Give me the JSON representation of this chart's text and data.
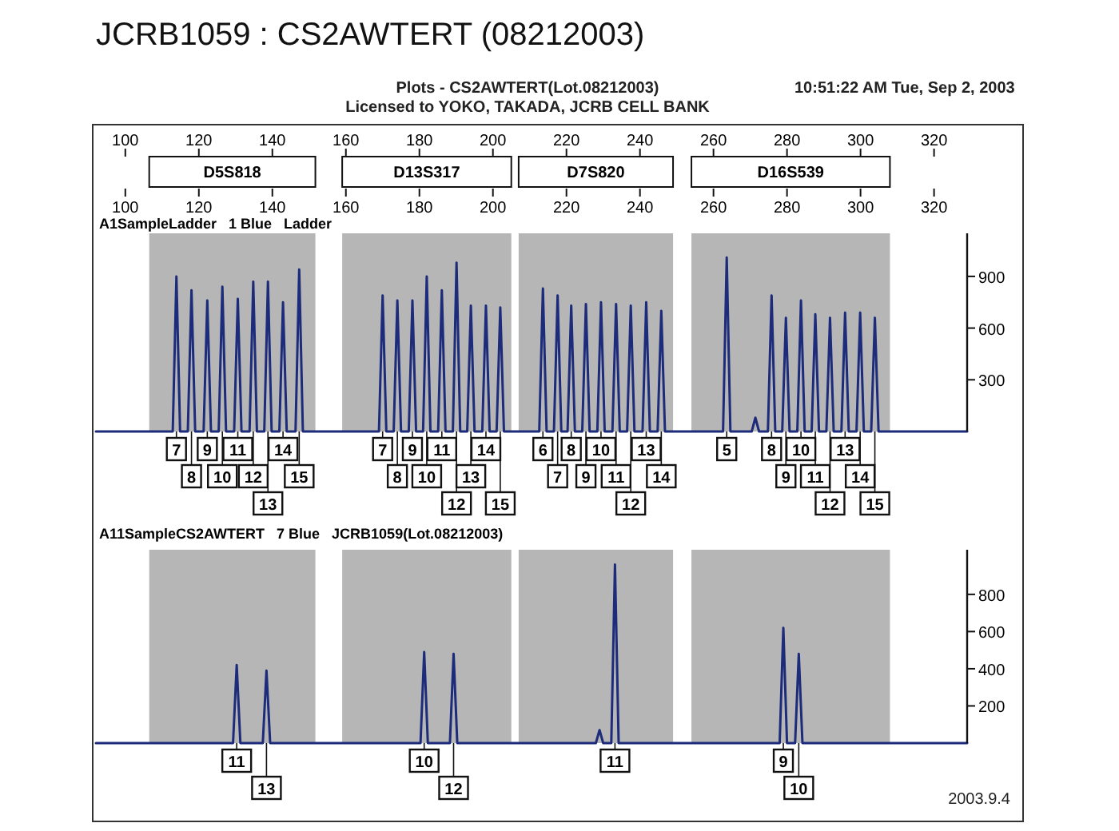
{
  "chart_data": [
    {
      "type": "line",
      "title": "JCRB1059 : CS2AWTERT (08212003)",
      "subtitle": "A1SampleLadder   1 Blue   Ladder",
      "annotations": [
        "Plots - CS2AWTERT(Lot.08212003)",
        "Licensed to YOKO, TAKADA, JCRB CELL BANK",
        "10:51:22 AM Tue, Sep 2, 2003",
        {
          "text": "7",
          "x": 113.9,
          "y": 0
        },
        {
          "text": "8",
          "x": 118,
          "y": 0
        },
        {
          "text": "9",
          "x": 122.3,
          "y": 0
        },
        {
          "text": "10",
          "x": 126.4,
          "y": 0
        },
        {
          "text": "11",
          "x": 130.6,
          "y": 0
        },
        {
          "text": "12",
          "x": 134.8,
          "y": 0
        },
        {
          "text": "13",
          "x": 138.8,
          "y": 0
        },
        {
          "text": "14",
          "x": 142.9,
          "y": 0
        },
        {
          "text": "15",
          "x": 147.3,
          "y": 0
        },
        {
          "text": "7",
          "x": 170,
          "y": 0
        },
        {
          "text": "8",
          "x": 174,
          "y": 0
        },
        {
          "text": "9",
          "x": 178.1,
          "y": 0
        },
        {
          "text": "10",
          "x": 182,
          "y": 0
        },
        {
          "text": "11",
          "x": 186.1,
          "y": 0
        },
        {
          "text": "12",
          "x": 190.1,
          "y": 0
        },
        {
          "text": "13",
          "x": 194,
          "y": 0
        },
        {
          "text": "14",
          "x": 198.1,
          "y": 0
        },
        {
          "text": "15",
          "x": 202,
          "y": 0
        },
        {
          "text": "6",
          "x": 213.6,
          "y": 0
        },
        {
          "text": "7",
          "x": 217.6,
          "y": 0
        },
        {
          "text": "8",
          "x": 221.3,
          "y": 0
        },
        {
          "text": "9",
          "x": 225.3,
          "y": 0
        },
        {
          "text": "10",
          "x": 229.4,
          "y": 0
        },
        {
          "text": "11",
          "x": 233.5,
          "y": 0
        },
        {
          "text": "12",
          "x": 237.5,
          "y": 0
        },
        {
          "text": "13",
          "x": 241.7,
          "y": 0
        },
        {
          "text": "14",
          "x": 245.8,
          "y": 0
        },
        {
          "text": "5",
          "x": 263.6,
          "y": 0
        },
        {
          "text": "8",
          "x": 275.8,
          "y": 0
        },
        {
          "text": "9",
          "x": 279.7,
          "y": 0
        },
        {
          "text": "10",
          "x": 283.8,
          "y": 0
        },
        {
          "text": "11",
          "x": 287.7,
          "y": 0
        },
        {
          "text": "12",
          "x": 291.7,
          "y": 0
        },
        {
          "text": "13",
          "x": 295.8,
          "y": 0
        },
        {
          "text": "14",
          "x": 299.9,
          "y": 0
        },
        {
          "text": "15",
          "x": 303.9,
          "y": 0
        }
      ],
      "xlim": [
        92,
        329
      ],
      "xticks": [
        100,
        120,
        140,
        160,
        180,
        200,
        220,
        240,
        260,
        280,
        300,
        320
      ],
      "x2lim": [
        92,
        329
      ],
      "x2ticks": [
        100,
        120,
        140,
        160,
        180,
        200,
        220,
        240,
        260,
        280,
        300,
        320
      ],
      "ylim": [
        0,
        1150
      ],
      "yticks": [
        300,
        600,
        900
      ],
      "bands": [
        {
          "axis": "x",
          "from": 106.5,
          "to": 151.7,
          "label": "D5S818",
          "color": "#a9a9a9"
        },
        {
          "axis": "x",
          "from": 159,
          "to": 205,
          "label": "D13S317",
          "color": "#a9a9a9"
        },
        {
          "axis": "x",
          "from": 207,
          "to": 249,
          "label": "D7S820",
          "color": "#a9a9a9"
        },
        {
          "axis": "x",
          "from": 254,
          "to": 308,
          "label": "D16S539",
          "color": "#a9a9a9"
        }
      ],
      "series": [
        {
          "color": "#1c2b7a",
          "x": [
            92,
            112.9,
            113.9,
            114.9,
            117,
            118,
            119,
            121.3,
            122.3,
            123.3,
            125.4,
            126.4,
            127.4,
            129.6,
            130.6,
            131.6,
            133.8,
            134.8,
            135.8,
            137.8,
            138.8,
            139.8,
            141.9,
            142.9,
            143.9,
            146.3,
            147.3,
            148.3,
            169,
            170,
            171,
            173,
            174,
            175,
            177.1,
            178.1,
            179.1,
            181,
            182,
            183,
            185.1,
            186.1,
            187.1,
            189.1,
            190.1,
            191.1,
            193,
            194,
            195,
            197.1,
            198.1,
            199.1,
            201,
            202,
            203,
            212.6,
            213.6,
            214.6,
            216.6,
            217.6,
            218.6,
            220.3,
            221.3,
            222.3,
            224.3,
            225.3,
            226.3,
            228.4,
            229.4,
            230.4,
            232.5,
            233.5,
            234.5,
            236.5,
            237.5,
            238.5,
            240.7,
            241.7,
            242.7,
            244.8,
            245.8,
            246.8,
            262.6,
            263.6,
            264.6,
            270.4,
            271.4,
            272.4,
            274.8,
            275.8,
            276.8,
            278.7,
            279.7,
            280.7,
            282.8,
            283.8,
            284.8,
            286.7,
            287.7,
            288.7,
            290.7,
            291.7,
            292.7,
            294.8,
            295.8,
            296.8,
            298.9,
            299.9,
            300.9,
            302.9,
            303.9,
            304.9,
            329
          ],
          "values": [
            0,
            0,
            900,
            0,
            0,
            820,
            0,
            0,
            760,
            0,
            0,
            840,
            0,
            0,
            770,
            0,
            0,
            870,
            0,
            0,
            870,
            0,
            0,
            750,
            0,
            0,
            940,
            0,
            0,
            790,
            0,
            0,
            760,
            0,
            0,
            760,
            0,
            0,
            900,
            0,
            0,
            820,
            0,
            0,
            980,
            0,
            0,
            730,
            0,
            0,
            730,
            0,
            0,
            720,
            0,
            0,
            830,
            0,
            0,
            790,
            0,
            0,
            730,
            0,
            0,
            740,
            0,
            0,
            750,
            0,
            0,
            740,
            0,
            0,
            730,
            0,
            0,
            750,
            0,
            0,
            700,
            0,
            0,
            1010,
            0,
            0,
            80,
            0,
            0,
            790,
            0,
            0,
            660,
            0,
            0,
            760,
            0,
            0,
            680,
            0,
            0,
            660,
            0,
            0,
            690,
            0,
            0,
            690,
            0,
            0,
            660,
            0,
            0
          ]
        }
      ]
    },
    {
      "type": "line",
      "subtitle": "A11SampleCS2AWTERT   7 Blue   JCRB1059(Lot.08212003)",
      "annotations": [
        "2003.9.4",
        {
          "text": "11",
          "x": 130.3,
          "y": 0
        },
        {
          "text": "13",
          "x": 138.4,
          "y": 0
        },
        {
          "text": "10",
          "x": 181.3,
          "y": 0
        },
        {
          "text": "12",
          "x": 189.3,
          "y": 0
        },
        {
          "text": "11",
          "x": 233.2,
          "y": 0
        },
        {
          "text": "9",
          "x": 279,
          "y": 0
        },
        {
          "text": "10",
          "x": 283.2,
          "y": 0
        }
      ],
      "xlim": [
        92,
        329
      ],
      "ylim": [
        0,
        1040
      ],
      "yticks": [
        200,
        400,
        600,
        800
      ],
      "tick_labels": "y",
      "bands": [
        {
          "axis": "x",
          "from": 106.5,
          "to": 151.7,
          "color": "#a9a9a9"
        },
        {
          "axis": "x",
          "from": 159,
          "to": 205,
          "color": "#a9a9a9"
        },
        {
          "axis": "x",
          "from": 207,
          "to": 249,
          "color": "#a9a9a9"
        },
        {
          "axis": "x",
          "from": 254,
          "to": 308,
          "color": "#a9a9a9"
        }
      ],
      "series": [
        {
          "color": "#1c2b7a",
          "x": [
            92,
            129.3,
            130.3,
            131.3,
            137.4,
            138.4,
            139.4,
            180.3,
            181.3,
            182.3,
            188.3,
            189.3,
            190.3,
            228,
            229,
            230,
            232.2,
            233.2,
            234.2,
            278,
            279,
            280,
            282.2,
            283.2,
            284.2,
            329
          ],
          "values": [
            0,
            0,
            420,
            0,
            0,
            390,
            0,
            0,
            490,
            0,
            0,
            480,
            0,
            0,
            70,
            0,
            0,
            960,
            0,
            0,
            620,
            0,
            0,
            480,
            0,
            0
          ]
        }
      ]
    }
  ]
}
